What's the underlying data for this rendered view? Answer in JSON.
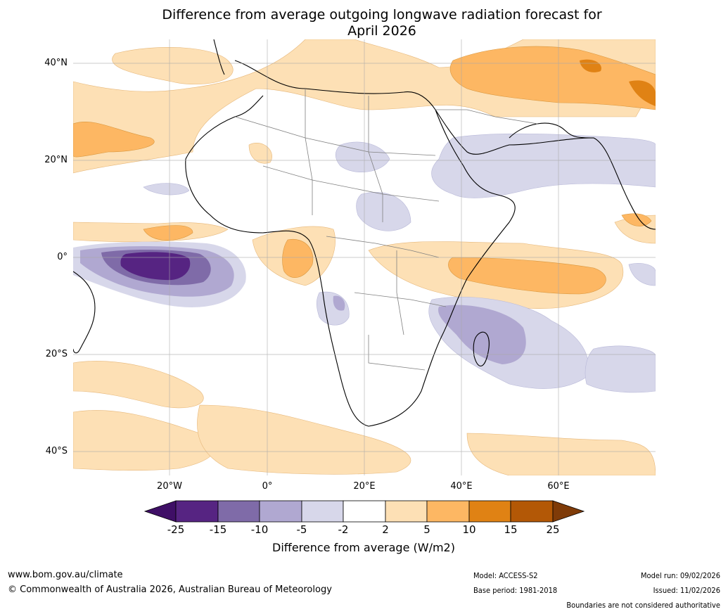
{
  "title": {
    "line1": "Difference from average outgoing longwave radiation forecast for",
    "line2": "April 2026"
  },
  "axes": {
    "lat_labels": [
      "40°N",
      "20°N",
      "0°",
      "20°S",
      "40°S"
    ],
    "lon_labels": [
      "20°W",
      "0°",
      "20°E",
      "40°E",
      "60°E"
    ]
  },
  "colorbar": {
    "colors": [
      "#3f0f66",
      "#562482",
      "#7f6ba8",
      "#b0a8d1",
      "#d7d7ea",
      "#ffffff",
      "#fde0b5",
      "#fdb763",
      "#e08214",
      "#b35806",
      "#7f3b08"
    ],
    "ticks": [
      "-25",
      "-15",
      "-10",
      "-5",
      "-2",
      "2",
      "5",
      "10",
      "15",
      "25"
    ],
    "label": "Difference from average (W/m2)"
  },
  "footer": {
    "website": "www.bom.gov.au/climate",
    "copyright": "© Commonwealth of Australia 2026, Australian Bureau of Meteorology",
    "model": "Model: ACCESS-S2",
    "base_period": "Base period: 1981-2018",
    "model_run": "Model run: 09/02/2026",
    "issued": "Issued: 11/02/2026",
    "disclaimer": "Boundaries are not considered authoritative"
  }
}
